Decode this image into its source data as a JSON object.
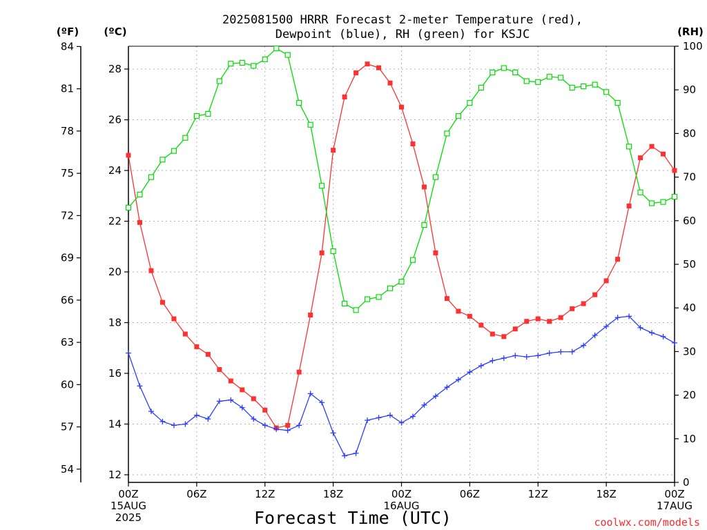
{
  "chart_data": {
    "type": "line",
    "title_lines": [
      "2025081500 HRRR Forecast 2-meter Temperature (red),",
      "Dewpoint (blue), RH (green) for KSJC"
    ],
    "xlabel": "Forecast Time (UTC)",
    "credit": "coolwx.com/models",
    "units": {
      "f": "(ºF)",
      "c": "(ºC)",
      "rh": "(RH)"
    },
    "x_range_hours": [
      0,
      48
    ],
    "y_left_c_range": [
      11.7,
      28.9
    ],
    "y_right_rh_range": [
      0,
      100
    ],
    "x_ticks": [
      {
        "h": 0,
        "lines": [
          "00Z",
          "15AUG",
          "2025"
        ]
      },
      {
        "h": 6,
        "lines": [
          "06Z"
        ]
      },
      {
        "h": 12,
        "lines": [
          "12Z"
        ]
      },
      {
        "h": 18,
        "lines": [
          "18Z"
        ]
      },
      {
        "h": 24,
        "lines": [
          "00Z",
          "16AUG"
        ]
      },
      {
        "h": 30,
        "lines": [
          "06Z"
        ]
      },
      {
        "h": 36,
        "lines": [
          "12Z"
        ]
      },
      {
        "h": 42,
        "lines": [
          "18Z"
        ]
      },
      {
        "h": 48,
        "lines": [
          "00Z",
          "17AUG"
        ]
      }
    ],
    "c_ticks": [
      "12",
      "14",
      "16",
      "18",
      "20",
      "22",
      "24",
      "26",
      "28"
    ],
    "f_ticks": [
      "54",
      "57",
      "60",
      "63",
      "66",
      "69",
      "72",
      "75",
      "78",
      "81",
      "84"
    ],
    "rh_ticks": [
      "0",
      "10",
      "20",
      "30",
      "40",
      "50",
      "60",
      "70",
      "80",
      "90",
      "100"
    ],
    "colors": {
      "temperature": "#ff3030",
      "dewpoint": "#2a3cff",
      "rh": "#00dd00"
    },
    "series": [
      {
        "name": "Temperature",
        "unit": "C",
        "marker": "filled-square",
        "values": [
          24.6,
          21.95,
          20.05,
          18.8,
          18.15,
          17.55,
          17.05,
          16.75,
          16.15,
          15.7,
          15.35,
          15.0,
          14.55,
          13.85,
          13.95,
          16.05,
          18.3,
          20.75,
          24.8,
          26.9,
          27.85,
          28.2,
          28.05,
          27.45,
          26.5,
          25.05,
          23.35,
          20.75,
          18.95,
          18.45,
          18.25,
          17.9,
          17.55,
          17.45,
          17.75,
          18.05,
          18.15,
          18.05,
          18.2,
          18.55,
          18.75,
          19.1,
          19.65,
          20.5,
          22.6,
          24.5,
          24.95,
          24.65,
          24.0
        ]
      },
      {
        "name": "Dewpoint",
        "unit": "C",
        "marker": "plus",
        "values": [
          16.8,
          15.5,
          14.5,
          14.1,
          13.95,
          14.0,
          14.35,
          14.2,
          14.9,
          14.95,
          14.65,
          14.2,
          13.95,
          13.8,
          13.75,
          13.95,
          15.2,
          14.85,
          13.65,
          12.75,
          12.85,
          14.15,
          14.25,
          14.35,
          14.05,
          14.3,
          14.75,
          15.1,
          15.45,
          15.75,
          16.05,
          16.3,
          16.5,
          16.6,
          16.7,
          16.65,
          16.7,
          16.8,
          16.85,
          16.85,
          17.1,
          17.5,
          17.85,
          18.2,
          18.25,
          17.8,
          17.6,
          17.45,
          17.2
        ]
      },
      {
        "name": "RH",
        "unit": "%",
        "marker": "open-square",
        "values": [
          63,
          66,
          70,
          74,
          76,
          79,
          84,
          84.5,
          92,
          96,
          96.2,
          95.5,
          97,
          99.5,
          98,
          87,
          82,
          68,
          53,
          41,
          39.5,
          42,
          42.5,
          44.5,
          46,
          51,
          59,
          70,
          80,
          84,
          87,
          90.5,
          94,
          95,
          94,
          92,
          91.8,
          93,
          92.8,
          90.5,
          90.8,
          91.2,
          89.5,
          87,
          77,
          66.5,
          64,
          64.3,
          65.5
        ]
      }
    ]
  }
}
